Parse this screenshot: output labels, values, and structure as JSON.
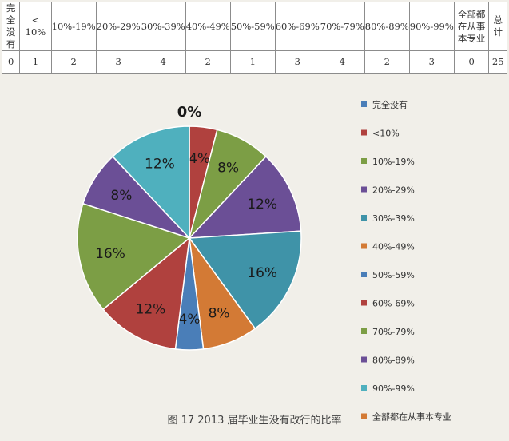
{
  "table": {
    "headers": [
      "完全没有",
      "< 10%",
      "10%-19%",
      "20%-29%",
      "30%-39%",
      "40%-49%",
      "50%-59%",
      "60%-69%",
      "70%-79%",
      "80%-89%",
      "90%-99%",
      "全部都在从事本专业",
      "总计"
    ],
    "values": [
      "0",
      "1",
      "2",
      "3",
      "4",
      "2",
      "1",
      "3",
      "4",
      "2",
      "3",
      "0",
      "25"
    ]
  },
  "chart_data": {
    "type": "pie",
    "categories": [
      "完全没有",
      "<10%",
      "10%-19%",
      "20%-29%",
      "30%-39%",
      "40%-49%",
      "50%-59%",
      "60%-69%",
      "70%-79%",
      "80%-89%",
      "90%-99%",
      "全部都在从事本专业"
    ],
    "values": [
      0,
      4,
      8,
      12,
      16,
      8,
      4,
      12,
      16,
      8,
      12,
      0
    ],
    "data_labels": [
      "0%",
      "4%",
      "8%",
      "12%",
      "16%",
      "8%",
      "4%",
      "12%",
      "16%",
      "8%",
      "12%",
      ""
    ],
    "colors": [
      "#4a7eb8",
      "#b0413e",
      "#7c9e45",
      "#6b4f96",
      "#3f93a8",
      "#d37a35",
      "#4a7eb8",
      "#b0413e",
      "#7c9e45",
      "#6b4f96",
      "#4fb0be",
      "#d37a35"
    ],
    "legend_position": "right",
    "title": ""
  },
  "caption": "图 17  2013 届毕业生没有改行的比率"
}
